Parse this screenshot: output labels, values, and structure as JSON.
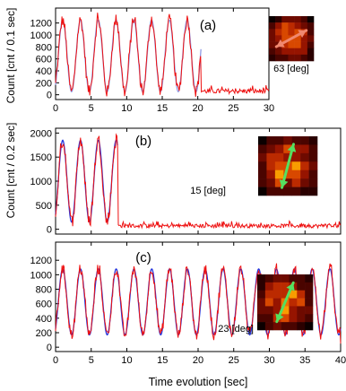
{
  "figure": {
    "ylabel_top": "Count [cnt / 0.1 sec]",
    "ylabel_bottom": "Count [cnt / 0.2 sec]",
    "xlabel": "Time evolution [sec]"
  },
  "colors": {
    "data": "#ee1111",
    "fit": "#2233dd",
    "fit_light": "#8f9be6",
    "arrow_a": "#f08870",
    "arrow_bc": "#55e060"
  },
  "chart_data": [
    {
      "type": "line",
      "panel_label": "(a)",
      "angle_label": "63 [deg]",
      "xlim": [
        0,
        30
      ],
      "ylim": [
        -80,
        1450
      ],
      "xticks": [
        0,
        5,
        10,
        15,
        20,
        25,
        30
      ],
      "yticks": [
        0,
        200,
        400,
        600,
        800,
        1000,
        1200
      ],
      "ylabel_side": "top",
      "oscillation": {
        "period_sec": 2.5,
        "peak": 1250,
        "trough": 50,
        "stops_at_sec": 20.5,
        "background_level": 60
      },
      "series": [
        {
          "role": "data",
          "color": "#ee1111"
        },
        {
          "role": "fit",
          "color": "#8f9be6"
        }
      ],
      "inset": {
        "angle_deg": 63,
        "arrow_color": "#f08870"
      }
    },
    {
      "type": "line",
      "panel_label": "(b)",
      "angle_label": "15 [deg]",
      "xlim": [
        0,
        40
      ],
      "ylim": [
        -100,
        2100
      ],
      "xticks": [],
      "yticks": [
        0,
        500,
        1000,
        1500,
        2000
      ],
      "oscillation": {
        "period_sec": 2.5,
        "peak": 1850,
        "trough": 150,
        "stops_at_sec": 8.7,
        "background_level": 70
      },
      "series": [
        {
          "role": "data",
          "color": "#ee1111"
        },
        {
          "role": "fit",
          "color": "#2233dd"
        }
      ],
      "inset": {
        "angle_deg": 15,
        "arrow_color": "#55e060"
      }
    },
    {
      "type": "line",
      "panel_label": "(c)",
      "angle_label": "23 [deg]",
      "xlim": [
        0,
        40
      ],
      "ylim": [
        -60,
        1450
      ],
      "xticks": [
        0,
        5,
        10,
        15,
        20,
        25,
        30,
        35,
        40
      ],
      "yticks": [
        0,
        200,
        400,
        600,
        800,
        1000,
        1200
      ],
      "oscillation": {
        "period_sec": 2.5,
        "peak": 1080,
        "trough": 170,
        "stops_at_sec": 40,
        "background_level": null
      },
      "series": [
        {
          "role": "data",
          "color": "#ee1111"
        },
        {
          "role": "fit",
          "color": "#2233dd"
        }
      ],
      "inset": {
        "angle_deg": 23,
        "arrow_color": "#55e060"
      }
    }
  ]
}
